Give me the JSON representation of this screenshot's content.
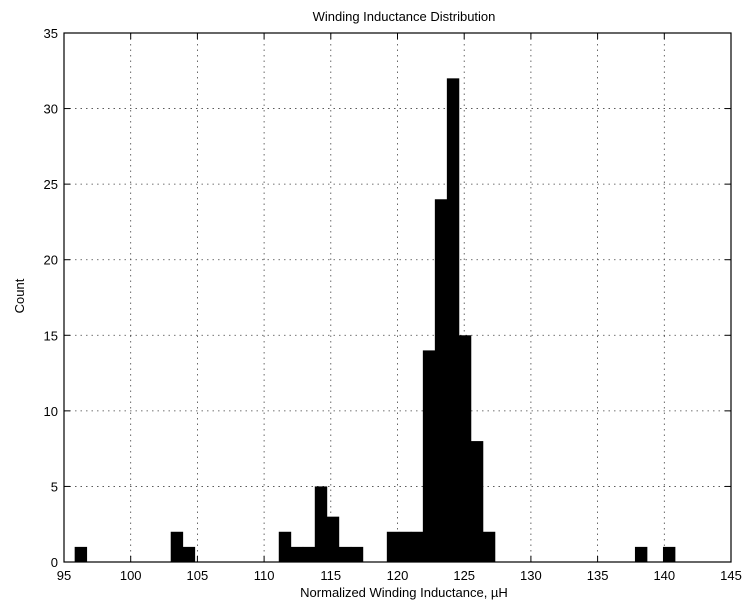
{
  "chart_data": {
    "type": "bar",
    "title": "Winding Inductance Distribution",
    "xlabel": "Normalized Winding Inductance, µH",
    "ylabel": "Count",
    "xlim": [
      95,
      145
    ],
    "ylim": [
      0,
      35
    ],
    "xticks": [
      95,
      100,
      105,
      110,
      115,
      120,
      125,
      130,
      135,
      140,
      145
    ],
    "yticks": [
      0,
      5,
      10,
      15,
      20,
      25,
      30,
      35
    ],
    "grid": true,
    "bar_color": "#000000",
    "bins": [
      {
        "x0": 95.8,
        "x1": 96.7,
        "count": 1
      },
      {
        "x0": 103.0,
        "x1": 103.9,
        "count": 2
      },
      {
        "x0": 103.9,
        "x1": 104.8,
        "count": 1
      },
      {
        "x0": 111.1,
        "x1": 112.0,
        "count": 2
      },
      {
        "x0": 112.0,
        "x1": 112.9,
        "count": 1
      },
      {
        "x0": 112.9,
        "x1": 113.8,
        "count": 1
      },
      {
        "x0": 113.8,
        "x1": 114.7,
        "count": 5
      },
      {
        "x0": 114.7,
        "x1": 115.6,
        "count": 3
      },
      {
        "x0": 115.6,
        "x1": 116.5,
        "count": 1
      },
      {
        "x0": 116.5,
        "x1": 117.4,
        "count": 1
      },
      {
        "x0": 119.2,
        "x1": 120.1,
        "count": 2
      },
      {
        "x0": 120.1,
        "x1": 121.0,
        "count": 2
      },
      {
        "x0": 121.0,
        "x1": 121.9,
        "count": 2
      },
      {
        "x0": 121.9,
        "x1": 122.8,
        "count": 14
      },
      {
        "x0": 122.8,
        "x1": 123.7,
        "count": 24
      },
      {
        "x0": 123.7,
        "x1": 124.6,
        "count": 32
      },
      {
        "x0": 124.6,
        "x1": 125.5,
        "count": 15
      },
      {
        "x0": 125.5,
        "x1": 126.4,
        "count": 8
      },
      {
        "x0": 126.4,
        "x1": 127.3,
        "count": 2
      },
      {
        "x0": 137.8,
        "x1": 138.7,
        "count": 1
      },
      {
        "x0": 139.9,
        "x1": 140.8,
        "count": 1
      }
    ]
  }
}
